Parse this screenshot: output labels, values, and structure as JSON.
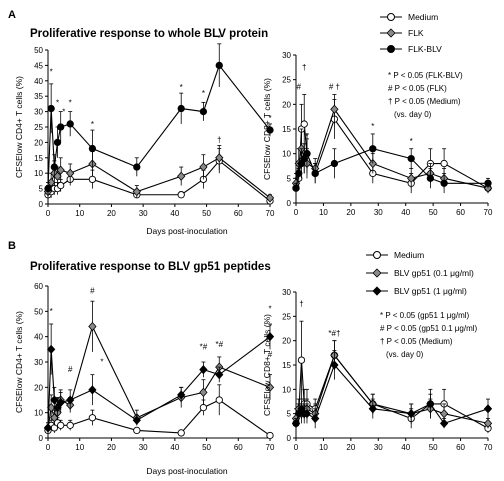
{
  "panels": [
    {
      "letter": "A",
      "title": "Proliferative response to whole BLV protein",
      "xlabel": "Days post-inoculation",
      "legend": [
        "Medium",
        "FLK",
        "FLK-BLV"
      ],
      "notes": [
        "* P < 0.05 (FLK-BLV)",
        "# P < 0.05 (FLK)",
        "† P < 0.05 (Medium)",
        "(vs. day 0)"
      ]
    },
    {
      "letter": "B",
      "title": "Proliferative response to BLV gp51 peptides",
      "xlabel": "Days post-inoculation",
      "legend": [
        "Medium",
        "BLV gp51 (0.1 μg/ml)",
        "BLV gp51 (1 μg/ml)"
      ],
      "notes": [
        "* P < 0.05 (gp51 1 μg/ml)",
        "# P < 0.05 (gp51 0.1 μg/ml)",
        "† P < 0.05 (Medium)",
        "(vs. day 0)"
      ]
    }
  ],
  "series_style": [
    {
      "marker": "circle",
      "fill": "#ffffff"
    },
    {
      "marker": "diamond",
      "fill": "#8a8a8a"
    },
    {
      "marker": "diamond",
      "fill": "#000000"
    }
  ],
  "series_style_A": [
    {
      "marker": "circle",
      "fill": "#ffffff"
    },
    {
      "marker": "diamond",
      "fill": "#8a8a8a"
    },
    {
      "marker": "circle",
      "fill": "#000000"
    }
  ],
  "chart_data": [
    {
      "type": "line",
      "panel": "A",
      "ylabel": "CFSElow CD4+ T cells (%)",
      "ylim": [
        0,
        50
      ],
      "yticks": [
        0,
        5,
        10,
        15,
        20,
        25,
        30,
        35,
        40,
        45,
        50
      ],
      "xlim": [
        0,
        70
      ],
      "xticks": [
        0,
        10,
        20,
        30,
        40,
        50,
        60,
        70
      ],
      "x": [
        0,
        1,
        2,
        3,
        4,
        7,
        14,
        28,
        42,
        49,
        54,
        70
      ],
      "series": [
        {
          "name": "Medium",
          "values": [
            3,
            4,
            5,
            5,
            6,
            8,
            8,
            3,
            3,
            8,
            14,
            1
          ],
          "err": [
            1,
            2,
            2,
            2,
            2,
            2,
            3,
            1,
            1,
            3,
            4,
            1
          ]
        },
        {
          "name": "FLK",
          "values": [
            4,
            7,
            10,
            9,
            11,
            10,
            13,
            4,
            9,
            12,
            15,
            2
          ],
          "err": [
            2,
            3,
            4,
            3,
            4,
            3,
            4,
            2,
            3,
            4,
            4,
            1
          ]
        },
        {
          "name": "FLK-BLV",
          "values": [
            5,
            31,
            12,
            20,
            25,
            26,
            18,
            12,
            31,
            30,
            45,
            24
          ],
          "err": [
            2,
            8,
            4,
            5,
            5,
            4,
            6,
            3,
            5,
            3,
            7,
            2
          ]
        }
      ],
      "annotations": [
        {
          "x": 1,
          "y": 42,
          "text": "*"
        },
        {
          "x": 3,
          "y": 32,
          "text": "*"
        },
        {
          "x": 5,
          "y": 29,
          "text": "*"
        },
        {
          "x": 7,
          "y": 32,
          "text": "*"
        },
        {
          "x": 14,
          "y": 25,
          "text": "*"
        },
        {
          "x": 42,
          "y": 37,
          "text": "*"
        },
        {
          "x": 49,
          "y": 35,
          "text": "*"
        },
        {
          "x": 54,
          "y": 53,
          "text": "*"
        },
        {
          "x": 70,
          "y": 27,
          "text": "*"
        },
        {
          "x": 54,
          "y": 20,
          "text": "†"
        }
      ]
    },
    {
      "type": "line",
      "panel": "A",
      "ylabel": "CFSElow CD8+ T cells (%)",
      "ylim": [
        0,
        30
      ],
      "yticks": [
        0,
        5,
        10,
        15,
        20,
        25,
        30
      ],
      "xlim": [
        0,
        70
      ],
      "xticks": [
        0,
        10,
        20,
        30,
        40,
        50,
        60,
        70
      ],
      "x": [
        0,
        1,
        2,
        3,
        4,
        7,
        14,
        28,
        42,
        49,
        54,
        70
      ],
      "series": [
        {
          "name": "Medium",
          "values": [
            3,
            5,
            15,
            16,
            10,
            6,
            17,
            6,
            4,
            8,
            8,
            3
          ],
          "err": [
            1,
            2,
            5,
            6,
            4,
            2,
            4,
            2,
            2,
            3,
            3,
            1
          ]
        },
        {
          "name": "FLK",
          "values": [
            4,
            8,
            11,
            9,
            8,
            7,
            19,
            8,
            5,
            6,
            5,
            3
          ],
          "err": [
            2,
            3,
            4,
            3,
            3,
            2,
            3,
            2,
            2,
            2,
            2,
            1
          ]
        },
        {
          "name": "FLK-BLV",
          "values": [
            3,
            6,
            8,
            9,
            10,
            6,
            8,
            11,
            9,
            5,
            4,
            4
          ],
          "err": [
            1,
            2,
            3,
            3,
            3,
            2,
            3,
            3,
            2,
            2,
            2,
            1
          ]
        }
      ],
      "annotations": [
        {
          "x": 1,
          "y": 23,
          "text": "#"
        },
        {
          "x": 3,
          "y": 27,
          "text": "†"
        },
        {
          "x": 4,
          "y": 13,
          "text": "*"
        },
        {
          "x": 14,
          "y": 23,
          "text": "# †"
        },
        {
          "x": 28,
          "y": 15,
          "text": "*"
        },
        {
          "x": 42,
          "y": 12,
          "text": "*"
        }
      ]
    },
    {
      "type": "line",
      "panel": "B",
      "ylabel": "CFSElow CD4+ T cells (%)",
      "ylim": [
        0,
        60
      ],
      "yticks": [
        0,
        10,
        20,
        30,
        40,
        50,
        60
      ],
      "xlim": [
        0,
        70
      ],
      "xticks": [
        0,
        10,
        20,
        30,
        40,
        50,
        60,
        70
      ],
      "x": [
        0,
        1,
        2,
        3,
        4,
        7,
        14,
        28,
        42,
        49,
        54,
        70
      ],
      "series": [
        {
          "name": "Medium",
          "values": [
            3,
            5,
            4,
            6,
            5,
            5,
            8,
            3,
            2,
            12,
            15,
            1
          ],
          "err": [
            1,
            2,
            2,
            2,
            2,
            2,
            3,
            1,
            1,
            3,
            6,
            1
          ]
        },
        {
          "name": "BLV gp51 (0.1 μg/ml)",
          "values": [
            4,
            12,
            8,
            10,
            15,
            13,
            44,
            8,
            16,
            18,
            28,
            20
          ],
          "err": [
            2,
            5,
            3,
            3,
            4,
            3,
            10,
            3,
            4,
            5,
            4,
            5
          ]
        },
        {
          "name": "BLV gp51 (1 μg/ml)",
          "values": [
            4,
            35,
            15,
            12,
            14,
            15,
            19,
            7,
            17,
            27,
            25,
            40
          ],
          "err": [
            2,
            10,
            5,
            4,
            4,
            4,
            6,
            2,
            3,
            3,
            3,
            5
          ]
        }
      ],
      "annotations": [
        {
          "x": 1,
          "y": 49,
          "text": "*"
        },
        {
          "x": 7,
          "y": 26,
          "text": "#"
        },
        {
          "x": 14,
          "y": 57,
          "text": "#"
        },
        {
          "x": 17,
          "y": 29,
          "text": "*"
        },
        {
          "x": 49,
          "y": 35,
          "text": "*#"
        },
        {
          "x": 54,
          "y": 36,
          "text": "*#"
        },
        {
          "x": 70,
          "y": 50,
          "text": "*"
        },
        {
          "x": 70,
          "y": 32,
          "text": "#"
        }
      ]
    },
    {
      "type": "line",
      "panel": "B",
      "ylabel": "CFSElow CD8+ T cells (%)",
      "ylim": [
        0,
        30
      ],
      "yticks": [
        0,
        5,
        10,
        15,
        20,
        25,
        30
      ],
      "xlim": [
        0,
        70
      ],
      "xticks": [
        0,
        10,
        20,
        30,
        40,
        50,
        60,
        70
      ],
      "x": [
        0,
        1,
        2,
        3,
        4,
        7,
        14,
        28,
        42,
        49,
        54,
        70
      ],
      "series": [
        {
          "name": "Medium",
          "values": [
            3,
            5,
            16,
            7,
            7,
            6,
            17,
            7,
            4,
            7,
            7,
            2
          ],
          "err": [
            1,
            2,
            8,
            3,
            3,
            2,
            3,
            2,
            2,
            3,
            3,
            1
          ]
        },
        {
          "name": "BLV gp51 (0.1 μg/ml)",
          "values": [
            4,
            6,
            5,
            6,
            6,
            5,
            17,
            7,
            5,
            6,
            5,
            3
          ],
          "err": [
            2,
            2,
            2,
            2,
            2,
            2,
            3,
            2,
            2,
            2,
            2,
            1
          ]
        },
        {
          "name": "BLV gp51 (1 μg/ml)",
          "values": [
            3,
            5,
            6,
            5,
            5,
            4,
            15,
            6,
            5,
            7,
            3,
            6
          ],
          "err": [
            1,
            2,
            2,
            2,
            2,
            2,
            3,
            2,
            2,
            2,
            1,
            2
          ]
        }
      ],
      "annotations": [
        {
          "x": 2,
          "y": 27,
          "text": "†"
        },
        {
          "x": 14,
          "y": 21,
          "text": "*#†"
        }
      ]
    }
  ]
}
